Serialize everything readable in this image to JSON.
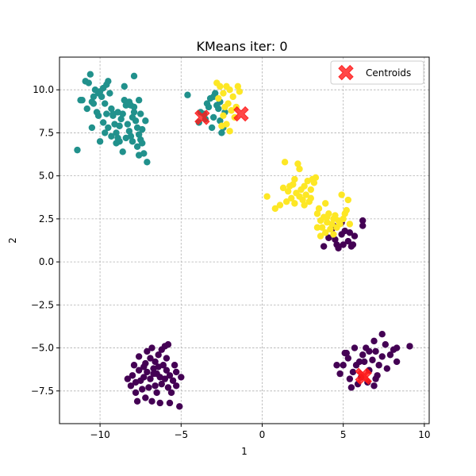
{
  "chart_data": {
    "type": "scatter",
    "title": "KMeans iter:  0",
    "xlabel": "1",
    "ylabel": "2",
    "xlim": [
      -12.5,
      10.3
    ],
    "ylim": [
      -9.4,
      11.9
    ],
    "xticks": [
      -10,
      -5,
      0,
      5,
      10
    ],
    "yticks": [
      -7.5,
      -5.0,
      -2.5,
      0.0,
      2.5,
      5.0,
      7.5,
      10.0
    ],
    "xtick_labels": [
      "−10",
      "−5",
      "0",
      "5",
      "10"
    ],
    "ytick_labels": [
      "−7.5",
      "−5.0",
      "−2.5",
      "0.0",
      "2.5",
      "5.0",
      "7.5",
      "10.0"
    ],
    "grid": true,
    "legend_position": "top-right",
    "colors": {
      "purple": "#440154",
      "teal": "#21918c",
      "yellow": "#fde725",
      "centroid": "#ff1a1a"
    },
    "series": [
      {
        "color": "purple",
        "points": [
          [
            -8.0,
            -6.6
          ],
          [
            -7.8,
            -7.0
          ],
          [
            -7.5,
            -6.9
          ],
          [
            -7.6,
            -6.3
          ],
          [
            -7.3,
            -6.1
          ],
          [
            -7.1,
            -6.4
          ],
          [
            -6.9,
            -6.8
          ],
          [
            -6.7,
            -6.2
          ],
          [
            -6.5,
            -6.5
          ],
          [
            -6.3,
            -6.7
          ],
          [
            -6.1,
            -6.0
          ],
          [
            -5.9,
            -6.3
          ],
          [
            -5.7,
            -6.6
          ],
          [
            -5.5,
            -6.9
          ],
          [
            -5.3,
            -6.4
          ],
          [
            -6.6,
            -5.8
          ],
          [
            -6.4,
            -5.4
          ],
          [
            -6.2,
            -5.1
          ],
          [
            -6.0,
            -4.9
          ],
          [
            -5.8,
            -4.8
          ],
          [
            -6.9,
            -5.6
          ],
          [
            -7.1,
            -5.2
          ],
          [
            -7.6,
            -5.5
          ],
          [
            -7.9,
            -6.0
          ],
          [
            -8.3,
            -6.8
          ],
          [
            -8.1,
            -7.2
          ],
          [
            -7.8,
            -7.6
          ],
          [
            -7.4,
            -7.4
          ],
          [
            -7.0,
            -7.3
          ],
          [
            -6.6,
            -7.2
          ],
          [
            -6.2,
            -7.1
          ],
          [
            -5.8,
            -7.3
          ],
          [
            -5.6,
            -7.6
          ],
          [
            -5.3,
            -7.2
          ],
          [
            -5.0,
            -6.7
          ],
          [
            -7.2,
            -7.9
          ],
          [
            -6.8,
            -8.1
          ],
          [
            -6.3,
            -8.2
          ],
          [
            -5.7,
            -8.2
          ],
          [
            -7.7,
            -8.1
          ],
          [
            -5.1,
            -8.4
          ],
          [
            -6.4,
            -6.1
          ],
          [
            -6.0,
            -6.8
          ],
          [
            -6.7,
            -6.5
          ],
          [
            -7.3,
            -6.7
          ],
          [
            -5.4,
            -6.0
          ],
          [
            -6.8,
            -5.0
          ],
          [
            -7.2,
            -5.9
          ],
          [
            -5.9,
            -5.6
          ],
          [
            -6.5,
            -7.6
          ],
          [
            4.6,
            -6.0
          ],
          [
            4.8,
            -6.5
          ],
          [
            5.0,
            -6.0
          ],
          [
            5.2,
            -5.3
          ],
          [
            5.4,
            -6.8
          ],
          [
            5.6,
            -6.4
          ],
          [
            5.8,
            -6.0
          ],
          [
            6.0,
            -5.8
          ],
          [
            6.2,
            -5.4
          ],
          [
            6.4,
            -5.0
          ],
          [
            6.6,
            -6.3
          ],
          [
            6.8,
            -5.7
          ],
          [
            7.0,
            -5.2
          ],
          [
            7.2,
            -6.0
          ],
          [
            7.4,
            -5.5
          ],
          [
            7.6,
            -4.8
          ],
          [
            7.9,
            -5.4
          ],
          [
            8.1,
            -5.1
          ],
          [
            8.3,
            -5.8
          ],
          [
            7.7,
            -6.2
          ],
          [
            7.1,
            -6.6
          ],
          [
            6.9,
            -7.2
          ],
          [
            6.5,
            -7.0
          ],
          [
            6.1,
            -6.7
          ],
          [
            5.9,
            -7.1
          ],
          [
            5.5,
            -7.3
          ],
          [
            7.4,
            -4.2
          ],
          [
            6.9,
            -4.6
          ],
          [
            6.6,
            -5.2
          ],
          [
            9.1,
            -4.9
          ],
          [
            8.3,
            -5.0
          ],
          [
            6.3,
            -5.8
          ],
          [
            5.3,
            -5.6
          ],
          [
            5.1,
            -5.3
          ],
          [
            5.7,
            -5.0
          ],
          [
            7.0,
            -6.8
          ],
          [
            3.8,
            0.9
          ],
          [
            4.1,
            1.4
          ],
          [
            4.3,
            1.9
          ],
          [
            4.5,
            1.3
          ],
          [
            4.7,
            0.8
          ],
          [
            4.9,
            1.6
          ],
          [
            5.1,
            1.8
          ],
          [
            5.3,
            1.2
          ],
          [
            5.5,
            0.9
          ],
          [
            5.7,
            1.5
          ],
          [
            4.4,
            2.1
          ],
          [
            4.9,
            2.3
          ],
          [
            5.4,
            1.7
          ],
          [
            5.6,
            1.0
          ],
          [
            6.2,
            2.4
          ],
          [
            6.2,
            2.1
          ],
          [
            4.6,
            1.0
          ],
          [
            5.0,
            1.0
          ]
        ]
      },
      {
        "color": "teal",
        "points": [
          [
            -11.4,
            6.5
          ],
          [
            -11.1,
            9.4
          ],
          [
            -10.9,
            10.5
          ],
          [
            -10.7,
            10.4
          ],
          [
            -10.6,
            10.9
          ],
          [
            -10.5,
            9.3
          ],
          [
            -10.4,
            9.6
          ],
          [
            -10.3,
            10.0
          ],
          [
            -10.1,
            9.8
          ],
          [
            -10.0,
            9.9
          ],
          [
            -9.9,
            9.6
          ],
          [
            -9.8,
            10.1
          ],
          [
            -9.7,
            9.2
          ],
          [
            -9.6,
            10.3
          ],
          [
            -9.5,
            10.5
          ],
          [
            -9.4,
            9.8
          ],
          [
            -9.3,
            8.9
          ],
          [
            -9.2,
            8.5
          ],
          [
            -9.1,
            8.0
          ],
          [
            -9.0,
            7.5
          ],
          [
            -8.9,
            7.2
          ],
          [
            -8.8,
            7.9
          ],
          [
            -8.7,
            8.3
          ],
          [
            -8.6,
            8.6
          ],
          [
            -8.5,
            9.4
          ],
          [
            -8.4,
            9.1
          ],
          [
            -8.3,
            8.0
          ],
          [
            -8.2,
            7.6
          ],
          [
            -8.1,
            7.3
          ],
          [
            -8.0,
            7.0
          ],
          [
            -7.9,
            8.7
          ],
          [
            -7.8,
            8.2
          ],
          [
            -7.7,
            7.8
          ],
          [
            -7.6,
            7.4
          ],
          [
            -7.5,
            7.1
          ],
          [
            -7.4,
            6.9
          ],
          [
            -7.3,
            6.3
          ],
          [
            -7.1,
            5.8
          ],
          [
            -7.2,
            8.2
          ],
          [
            -7.5,
            8.6
          ],
          [
            -7.9,
            9.0
          ],
          [
            -8.2,
            9.3
          ],
          [
            -8.5,
            10.2
          ],
          [
            -9.2,
            8.6
          ],
          [
            -9.5,
            7.8
          ],
          [
            -9.8,
            8.1
          ],
          [
            -10.0,
            7.0
          ],
          [
            -10.2,
            8.7
          ],
          [
            -10.5,
            7.8
          ],
          [
            -10.8,
            8.9
          ],
          [
            -11.2,
            9.4
          ],
          [
            -7.6,
            9.4
          ],
          [
            -7.9,
            10.8
          ],
          [
            -9.6,
            8.6
          ],
          [
            -8.8,
            7.0
          ],
          [
            -8.4,
            7.2
          ],
          [
            -9.0,
            6.9
          ],
          [
            -8.6,
            6.4
          ],
          [
            -7.6,
            6.2
          ],
          [
            -9.3,
            7.3
          ],
          [
            -10.1,
            8.5
          ],
          [
            -8.0,
            8.4
          ],
          [
            -8.9,
            8.7
          ],
          [
            -9.7,
            7.5
          ],
          [
            -10.4,
            9.2
          ],
          [
            -8.1,
            9.1
          ],
          [
            -7.4,
            7.7
          ],
          [
            -7.7,
            6.7
          ],
          [
            -4.6,
            9.7
          ],
          [
            -3.9,
            8.1
          ],
          [
            -3.6,
            8.6
          ],
          [
            -3.4,
            9.2
          ],
          [
            -3.3,
            9.0
          ],
          [
            -3.2,
            9.5
          ],
          [
            -3.1,
            7.8
          ],
          [
            -3.0,
            8.4
          ],
          [
            -2.9,
            9.8
          ],
          [
            -2.8,
            9.1
          ],
          [
            -2.7,
            8.9
          ],
          [
            -2.6,
            9.3
          ],
          [
            -2.5,
            7.5
          ],
          [
            -2.4,
            7.8
          ],
          [
            -2.3,
            8.7
          ],
          [
            -3.5,
            8.3
          ],
          [
            -3.8,
            8.7
          ],
          [
            -3.0,
            9.6
          ],
          [
            -2.6,
            8.2
          ]
        ]
      },
      {
        "color": "yellow",
        "points": [
          [
            -2.8,
            10.4
          ],
          [
            -2.6,
            10.2
          ],
          [
            -2.4,
            9.8
          ],
          [
            -2.2,
            10.2
          ],
          [
            -2.0,
            10.0
          ],
          [
            -1.8,
            9.6
          ],
          [
            -1.6,
            9.0
          ],
          [
            -1.4,
            9.9
          ],
          [
            -2.1,
            9.2
          ],
          [
            -1.9,
            8.8
          ],
          [
            -2.4,
            8.5
          ],
          [
            -2.5,
            7.9
          ],
          [
            -2.2,
            8.0
          ],
          [
            -2.0,
            7.6
          ],
          [
            -1.7,
            8.4
          ],
          [
            -1.5,
            10.2
          ],
          [
            -2.7,
            9.5
          ],
          [
            -2.3,
            9.0
          ],
          [
            0.3,
            3.8
          ],
          [
            0.8,
            3.1
          ],
          [
            1.1,
            3.3
          ],
          [
            1.3,
            4.3
          ],
          [
            1.4,
            5.8
          ],
          [
            1.6,
            4.1
          ],
          [
            1.8,
            3.7
          ],
          [
            1.9,
            4.5
          ],
          [
            2.0,
            3.4
          ],
          [
            2.1,
            4.0
          ],
          [
            2.2,
            5.7
          ],
          [
            2.3,
            5.4
          ],
          [
            2.4,
            4.2
          ],
          [
            2.5,
            3.6
          ],
          [
            2.6,
            4.4
          ],
          [
            2.7,
            3.9
          ],
          [
            2.8,
            4.7
          ],
          [
            2.9,
            3.5
          ],
          [
            3.0,
            4.2
          ],
          [
            3.1,
            4.8
          ],
          [
            3.2,
            4.6
          ],
          [
            3.3,
            4.9
          ],
          [
            3.4,
            2.8
          ],
          [
            3.5,
            3.1
          ],
          [
            3.6,
            2.4
          ],
          [
            3.7,
            2.0
          ],
          [
            3.8,
            2.6
          ],
          [
            3.9,
            3.4
          ],
          [
            4.0,
            2.3
          ],
          [
            4.1,
            2.8
          ],
          [
            4.2,
            1.9
          ],
          [
            4.3,
            2.2
          ],
          [
            4.4,
            2.5
          ],
          [
            4.5,
            2.7
          ],
          [
            4.6,
            2.0
          ],
          [
            4.7,
            2.4
          ],
          [
            4.8,
            2.2
          ],
          [
            4.9,
            3.9
          ],
          [
            5.0,
            2.5
          ],
          [
            5.1,
            2.8
          ],
          [
            5.2,
            3.0
          ],
          [
            5.3,
            3.6
          ],
          [
            5.4,
            2.2
          ],
          [
            3.4,
            2.0
          ],
          [
            3.6,
            1.5
          ],
          [
            3.9,
            1.7
          ],
          [
            1.5,
            3.5
          ],
          [
            2.0,
            4.8
          ],
          [
            2.3,
            3.8
          ],
          [
            1.7,
            4.4
          ],
          [
            3.0,
            3.7
          ],
          [
            2.6,
            3.3
          ],
          [
            4.0,
            2.6
          ],
          [
            4.4,
            1.6
          ]
        ]
      }
    ],
    "centroids": {
      "label": "Centroids",
      "points": [
        [
          -3.7,
          8.4
        ],
        [
          -1.3,
          8.6
        ],
        [
          6.2,
          -6.6
        ],
        [
          6.3,
          -6.7
        ]
      ]
    }
  }
}
